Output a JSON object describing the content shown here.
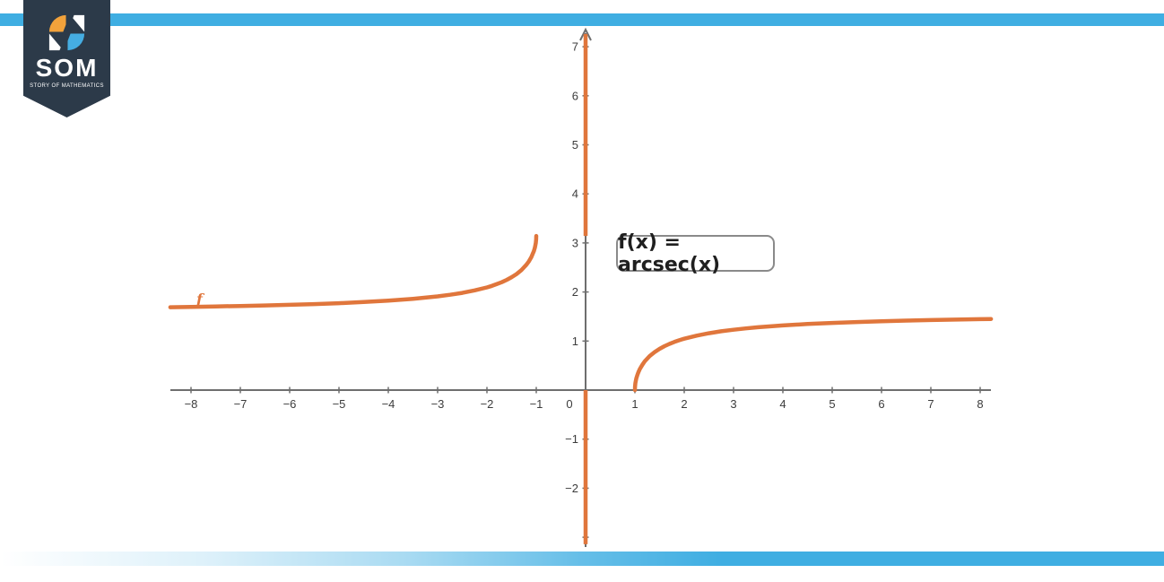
{
  "page": {
    "background": "#FFFFFF",
    "accent_blue": "#3FAEE2"
  },
  "logo": {
    "acronym": "SOM",
    "subtitle": "STORY OF MATHEMATICS",
    "banner_color": "#2C3A49",
    "mark_orange": "#F2A23B",
    "mark_blue": "#45ADE2",
    "mark_white": "#FFFFFF"
  },
  "equation_box": {
    "text": "f(x) = arcsec(x)"
  },
  "chart_data": {
    "type": "line",
    "title": "",
    "function": "f(x) = arcsec(x)",
    "curve_label": "f",
    "curve_color": "#E0763C",
    "axis_color": "#6E6E6E",
    "tick_label_color": "#3C3C3C",
    "grid": false,
    "legend": false,
    "x_axis": {
      "range": [
        -8.42,
        8.22
      ],
      "ticks": [
        -8,
        -7,
        -6,
        -5,
        -4,
        -3,
        -2,
        -1,
        1,
        2,
        3,
        4,
        5,
        6,
        7,
        8
      ],
      "zero_label": "0"
    },
    "y_axis": {
      "range": [
        -3.3,
        7.3
      ],
      "ticks": [
        -3,
        -2,
        -1,
        1,
        2,
        3,
        4,
        5,
        6,
        7
      ],
      "labeled_ticks": [
        -2,
        -1,
        1,
        2,
        3,
        4,
        5,
        6,
        7
      ],
      "arrow_at_top": true
    },
    "series": [
      {
        "name": "f",
        "expression": "arcsec(x)",
        "branches": [
          {
            "description": "left branch: y -> pi/2 as x -> -inf, y = pi at x = -1",
            "points": [
              [
                -8.42,
                1.69
              ],
              [
                -8,
                1.696
              ],
              [
                -7.5,
                1.705
              ],
              [
                -7,
                1.714
              ],
              [
                -6.5,
                1.725
              ],
              [
                -6,
                1.738
              ],
              [
                -5.5,
                1.754
              ],
              [
                -5,
                1.772
              ],
              [
                -4.5,
                1.795
              ],
              [
                -4,
                1.823
              ],
              [
                -3.5,
                1.861
              ],
              [
                -3,
                1.911
              ],
              [
                -2.75,
                1.943
              ],
              [
                -2.5,
                1.982
              ],
              [
                -2.25,
                2.032
              ],
              [
                -2,
                2.094
              ],
              [
                -1.9,
                2.125
              ],
              [
                -1.8,
                2.16
              ],
              [
                -1.7,
                2.2
              ],
              [
                -1.6,
                2.246
              ],
              [
                -1.5,
                2.301
              ],
              [
                -1.4,
                2.366
              ],
              [
                -1.3,
                2.448
              ],
              [
                -1.2,
                2.556
              ],
              [
                -1.15,
                2.626
              ],
              [
                -1.1,
                2.712
              ],
              [
                -1.07,
                2.78
              ],
              [
                -1.05,
                2.832
              ],
              [
                -1.03,
                2.9
              ],
              [
                -1.02,
                2.943
              ],
              [
                -1.01,
                3.001
              ],
              [
                -1.005,
                3.042
              ],
              [
                -1.002,
                3.078
              ],
              [
                -1.001,
                3.097
              ],
              [
                -1,
                3.142
              ]
            ]
          },
          {
            "description": "right branch: y = 0 at x = 1, y -> pi/2 as x -> +inf",
            "points": [
              [
                1,
                0
              ],
              [
                1.001,
                0.045
              ],
              [
                1.002,
                0.063
              ],
              [
                1.005,
                0.1
              ],
              [
                1.01,
                0.141
              ],
              [
                1.02,
                0.198
              ],
              [
                1.03,
                0.242
              ],
              [
                1.05,
                0.31
              ],
              [
                1.07,
                0.363
              ],
              [
                1.1,
                0.43
              ],
              [
                1.15,
                0.516
              ],
              [
                1.2,
                0.586
              ],
              [
                1.3,
                0.694
              ],
              [
                1.4,
                0.775
              ],
              [
                1.5,
                0.841
              ],
              [
                1.6,
                0.896
              ],
              [
                1.7,
                0.942
              ],
              [
                1.8,
                0.982
              ],
              [
                1.9,
                1.017
              ],
              [
                2,
                1.047
              ],
              [
                2.25,
                1.11
              ],
              [
                2.5,
                1.159
              ],
              [
                2.75,
                1.199
              ],
              [
                3,
                1.231
              ],
              [
                3.25,
                1.258
              ],
              [
                3.5,
                1.281
              ],
              [
                3.75,
                1.3
              ],
              [
                4,
                1.318
              ],
              [
                4.5,
                1.347
              ],
              [
                5,
                1.369
              ],
              [
                5.5,
                1.388
              ],
              [
                6,
                1.403
              ],
              [
                6.5,
                1.416
              ],
              [
                7,
                1.427
              ],
              [
                7.5,
                1.437
              ],
              [
                8,
                1.446
              ],
              [
                8.22,
                1.449
              ]
            ]
          }
        ]
      }
    ],
    "y_axis_overlay_segments": [
      {
        "x": 0,
        "y_from": 3.1416,
        "y_to": 7.26
      },
      {
        "x": 0,
        "y_from": 0,
        "y_to": -3.1416
      }
    ]
  }
}
